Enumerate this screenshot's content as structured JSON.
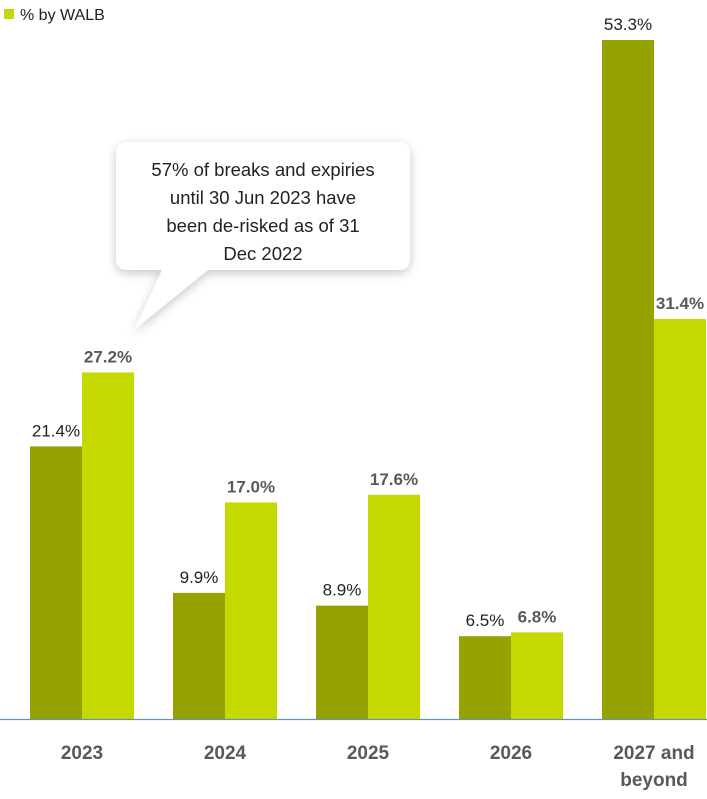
{
  "chart_data": {
    "type": "bar",
    "categories": [
      [
        "2023"
      ],
      [
        "2024"
      ],
      [
        "2025"
      ],
      [
        "2026"
      ],
      [
        "2027 and",
        "beyond"
      ]
    ],
    "series": [
      {
        "color": "#95A200",
        "values": [
          21.4,
          9.9,
          8.9,
          6.5,
          53.3
        ]
      },
      {
        "name": "% by WALB",
        "color": "#C5D800",
        "values": [
          27.2,
          17.0,
          17.6,
          6.8,
          31.4
        ]
      }
    ],
    "value_format": "{v}%",
    "ylim": [
      0,
      53.3
    ],
    "grid": false,
    "legend": {
      "position": "top-left",
      "label": "% by WALB"
    },
    "axis_color": "#6B8FB6",
    "annotation": {
      "lines": [
        "57% of breaks and expiries",
        "until 30 Jun 2023 have",
        "been de-risked as of 31",
        "Dec 2022"
      ],
      "points_to": "2023"
    }
  }
}
